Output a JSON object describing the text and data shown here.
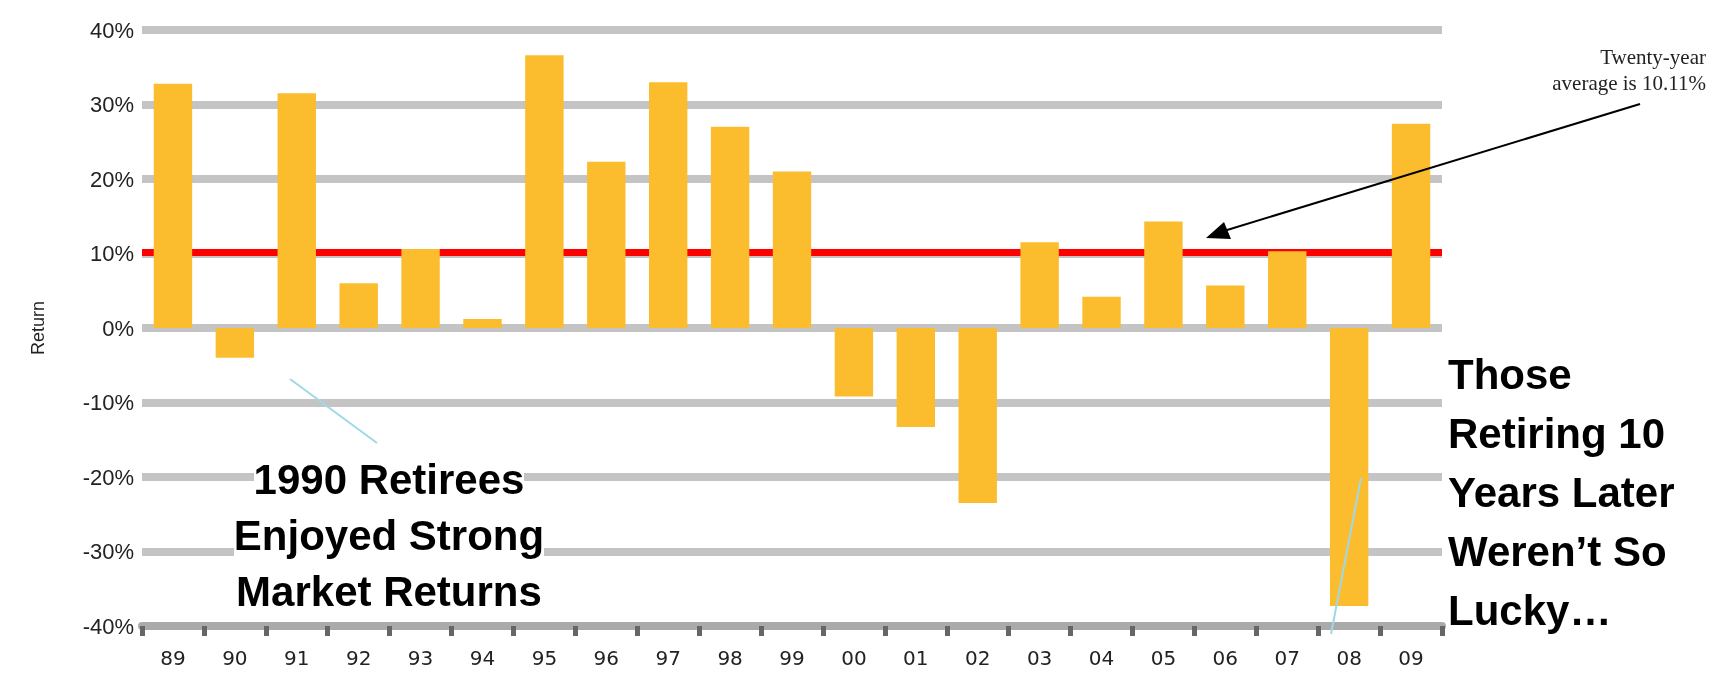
{
  "chart_data": {
    "type": "bar",
    "ylabel": "Return",
    "categories": [
      "89",
      "90",
      "91",
      "92",
      "93",
      "94",
      "95",
      "96",
      "97",
      "98",
      "99",
      "00",
      "01",
      "02",
      "03",
      "04",
      "05",
      "06",
      "07",
      "08",
      "09"
    ],
    "values": [
      32.8,
      -4,
      31.5,
      6,
      10.6,
      1.2,
      36.6,
      22.3,
      33,
      27,
      21,
      -9.2,
      -13.3,
      -23.5,
      11.5,
      4.2,
      14.3,
      5.7,
      10.3,
      -37.3,
      27.4
    ],
    "color": "#fbbc2d",
    "ylim": [
      -40,
      40
    ],
    "yticks": [
      {
        "value": -40,
        "label": "-40%"
      },
      {
        "value": -30,
        "label": "-30%"
      },
      {
        "value": -20,
        "label": "-20%"
      },
      {
        "value": -10,
        "label": "-10%"
      },
      {
        "value": 0,
        "label": "0%"
      },
      {
        "value": 10,
        "label": "10%"
      },
      {
        "value": 20,
        "label": "20%"
      },
      {
        "value": 30,
        "label": "30%"
      },
      {
        "value": 40,
        "label": "40%"
      }
    ],
    "grid": "y",
    "ref_lines": [
      {
        "axis": "y",
        "value": 10.11,
        "label": null,
        "color": "#ff0000"
      }
    ],
    "annotations": [
      "Twenty-year average is 10.11%",
      "1990 Retirees Enjoyed Strong Market Returns",
      "Those Retiring 10 Years Later Weren’t So Lucky…"
    ]
  }
}
